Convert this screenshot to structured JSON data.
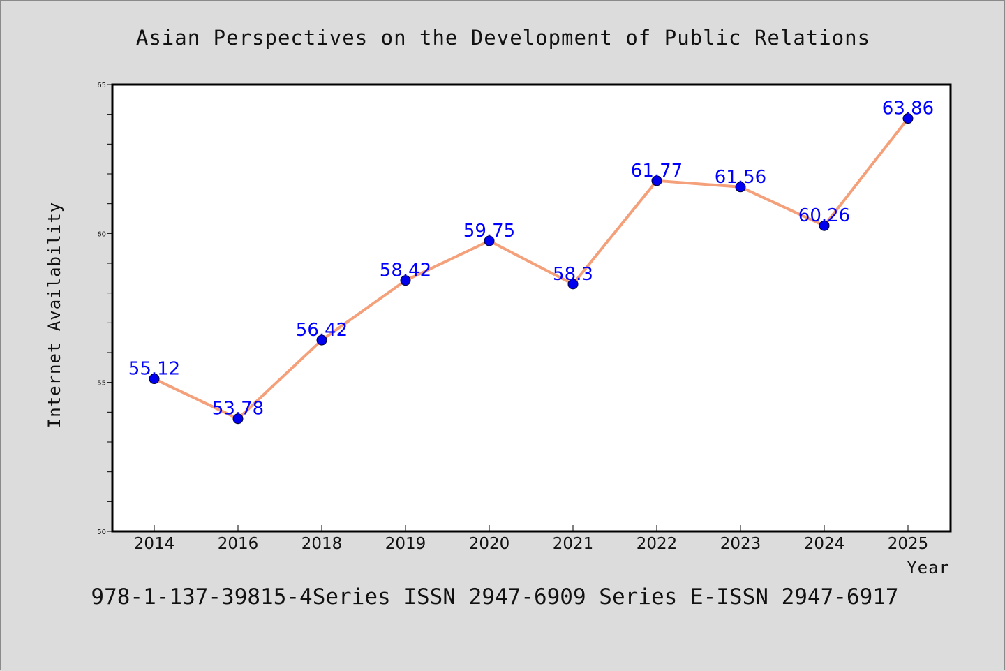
{
  "chart_data": {
    "type": "line",
    "title": "Asian Perspectives on the Development of Public Relations",
    "xlabel": "Year",
    "ylabel": "Internet Availability",
    "categories": [
      "2014",
      "2016",
      "2018",
      "2019",
      "2020",
      "2021",
      "2022",
      "2023",
      "2024",
      "2025"
    ],
    "series": [
      {
        "values": [
          55.12,
          53.78,
          56.42,
          58.42,
          59.75,
          58.3,
          61.77,
          61.56,
          60.26,
          63.86
        ],
        "data_labels": [
          "55.12",
          "53.78",
          "56.42",
          "58.42",
          "59.75",
          "58.3",
          "61.77",
          "61.56",
          "60.26",
          "63.86"
        ],
        "line_color": "#f4a07a",
        "marker_color": "#0000ee"
      }
    ],
    "ylim": [
      50,
      65
    ],
    "yticks": [
      "50",
      "55",
      "60",
      "65"
    ],
    "grid": false,
    "footer": "978-1-137-39815-4Series ISSN 2947-6909 Series E-ISSN 2947-6917",
    "colors": {
      "background": "#dcdcdc",
      "plot_background": "#ffffff",
      "data_label": "#0000ff"
    }
  }
}
